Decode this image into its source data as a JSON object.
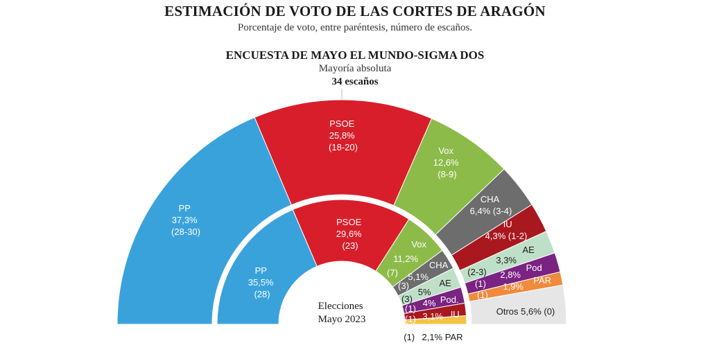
{
  "header": {
    "title": "ESTIMACIÓN DE VOTO DE LAS CORTES DE ARAGÓN",
    "subtitle": "Porcentaje de voto, entre paréntesis, número de escaños.",
    "survey": "ENCUESTA DE MAYO EL MUNDO-SIGMA DOS",
    "majority_label": "Mayoría absoluta",
    "majority_seats": "34 escaños"
  },
  "chart_data": [
    {
      "type": "pie",
      "title": "ENCUESTA DE MAYO EL MUNDO-SIGMA DOS",
      "series": [
        {
          "party": "PP",
          "pct": "37,3%",
          "seats": "(28-30)",
          "value": 37.3,
          "color": "#3aa2db"
        },
        {
          "party": "PSOE",
          "pct": "25,8%",
          "seats": "(18-20)",
          "value": 25.8,
          "color": "#d81e2a"
        },
        {
          "party": "Vox",
          "pct": "12,6%",
          "seats": "(8-9)",
          "value": 12.6,
          "color": "#8cbb4a"
        },
        {
          "party": "CHA",
          "pct": "6,4%",
          "seats": "(3-4)",
          "value": 6.4,
          "color": "#6d6d6d"
        },
        {
          "party": "IU",
          "pct": "4,3%",
          "seats": "(1-2)",
          "value": 4.3,
          "color": "#a9171f"
        },
        {
          "party": "AE",
          "pct": "3,3%",
          "seats": "(2-3)",
          "value": 3.3,
          "color": "#bfe0c8"
        },
        {
          "party": "Pod",
          "pct": "2,8%",
          "seats": "(1)",
          "value": 2.8,
          "color": "#7a2382"
        },
        {
          "party": "PAR",
          "pct": "1,9%",
          "seats": "(1)",
          "value": 1.9,
          "color": "#f08a3c"
        },
        {
          "party": "Otros",
          "pct": "5,6%",
          "seats": "(0)",
          "value": 5.6,
          "color": "#e6e6e6"
        }
      ]
    },
    {
      "type": "pie",
      "title": "Elecciones Mayo 2023",
      "series": [
        {
          "party": "PP",
          "pct": "35,5%",
          "seats": "(28)",
          "value": 35.5,
          "color": "#3aa2db"
        },
        {
          "party": "PSOE",
          "pct": "29,6%",
          "seats": "(23)",
          "value": 29.6,
          "color": "#d81e2a"
        },
        {
          "party": "Vox",
          "pct": "11,2%",
          "seats": "(7)",
          "value": 11.2,
          "color": "#8cbb4a"
        },
        {
          "party": "CHA",
          "pct": "5,1%",
          "seats": "(3)",
          "value": 5.1,
          "color": "#6d6d6d"
        },
        {
          "party": "AE",
          "pct": "5%",
          "seats": "(3)",
          "value": 5.0,
          "color": "#bfe0c8"
        },
        {
          "party": "Pod.",
          "pct": "4%",
          "seats": "(1)",
          "value": 4.0,
          "color": "#7a2382"
        },
        {
          "party": "IU",
          "pct": "3,1%",
          "seats": "(1)",
          "value": 3.1,
          "color": "#a9171f"
        },
        {
          "party": "PAR",
          "pct": "2,1%",
          "seats": "(1)",
          "value": 2.1,
          "color": "#f6c244"
        }
      ]
    }
  ],
  "labels": {
    "outer_pp": [
      "PP",
      "37,3%",
      "(28-30)"
    ],
    "outer_psoe": [
      "PSOE",
      "25,8%",
      "(18-20)"
    ],
    "outer_vox": [
      "Vox",
      "12,6%",
      "(8-9)"
    ],
    "outer_cha": [
      "CHA",
      "6,4% (3-4)"
    ],
    "outer_iu": [
      "IU",
      "4,3% (1-2)"
    ],
    "outer_ae": [
      "AE",
      "3,3%",
      "(2-3)"
    ],
    "outer_pod": [
      "Pod",
      "2,8%",
      "(1)"
    ],
    "outer_par": [
      "PAR",
      "1,9%",
      "(1)"
    ],
    "outer_otros": "Otros 5,6% (0)",
    "inner_center": [
      "Elecciones",
      "Mayo 2023"
    ],
    "inner_pp": [
      "PP",
      "35,5%",
      "(28)"
    ],
    "inner_psoe": [
      "PSOE",
      "29,6%",
      "(23)"
    ],
    "inner_vox": [
      "Vox",
      "11,2%",
      "(7)"
    ],
    "inner_cha": [
      "CHA",
      "5,1%",
      "(3)"
    ],
    "inner_ae": [
      "AE",
      "5%",
      "(3)"
    ],
    "inner_pod": [
      "Pod.",
      "4%",
      "(1)"
    ],
    "inner_iu": [
      "IU",
      "3,1%",
      "(1)"
    ],
    "inner_par": [
      "(1)",
      "2,1% PAR"
    ]
  }
}
